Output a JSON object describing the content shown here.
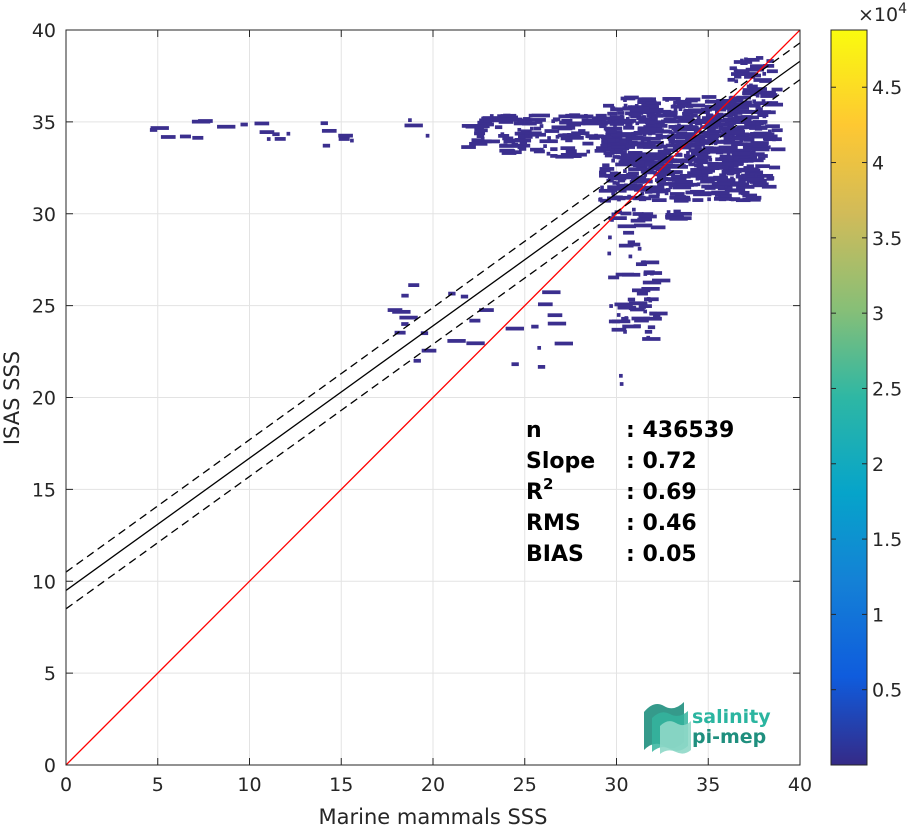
{
  "chart_data": {
    "type": "heatmap",
    "xlabel": "Marine mammals SSS",
    "ylabel": "ISAS SSS",
    "xlim": [
      0,
      40
    ],
    "ylim": [
      0,
      40
    ],
    "x_ticks": [
      0,
      5,
      10,
      15,
      20,
      25,
      30,
      35,
      40
    ],
    "y_ticks": [
      0,
      5,
      10,
      15,
      20,
      25,
      30,
      35,
      40
    ],
    "grid": true,
    "colorbar": {
      "colormap": "parula",
      "range": [
        0,
        48800
      ],
      "ticks": [
        5000,
        10000,
        15000,
        20000,
        25000,
        30000,
        35000,
        40000,
        45000
      ],
      "tick_labels": [
        "0.5",
        "1",
        "1.5",
        "2",
        "2.5",
        "3",
        "3.5",
        "4",
        "4.5"
      ],
      "multiplier_base": "×10",
      "multiplier_exp": "4"
    },
    "density_clusters": [
      {
        "x": [
          29,
          37.5
        ],
        "y": [
          30.8,
          36.2
        ],
        "count": 520
      },
      {
        "x": [
          30,
          38.5
        ],
        "y": [
          31.5,
          36.5
        ],
        "count": 260
      },
      {
        "x": [
          21.5,
          30
        ],
        "y": [
          33.2,
          35.5
        ],
        "count": 160
      },
      {
        "x": [
          36,
          38.5
        ],
        "y": [
          36.5,
          38.6
        ],
        "count": 40
      },
      {
        "x": [
          29.5,
          32
        ],
        "y": [
          23,
          30.5
        ],
        "count": 70
      },
      {
        "x": [
          32.5,
          33.5
        ],
        "y": [
          29.8,
          30.3
        ],
        "count": 12
      },
      {
        "x": [
          4,
          20.5
        ],
        "y": [
          33.8,
          35.2
        ],
        "count": 24
      },
      {
        "x": [
          17.5,
          27
        ],
        "y": [
          21.5,
          26.5
        ],
        "count": 26
      },
      {
        "x": [
          29.2,
          30.5
        ],
        "y": [
          20.6,
          21.6
        ],
        "count": 2
      }
    ],
    "lines": [
      {
        "name": "1:1",
        "color": "#ff0000",
        "dash": false,
        "slope": 1,
        "intercept": 0
      },
      {
        "name": "fit",
        "color": "#000000",
        "dash": false,
        "slope": 0.72,
        "intercept": 9.5
      },
      {
        "name": "fit-upper",
        "color": "#000000",
        "dash": true,
        "slope": 0.72,
        "intercept": 10.5
      },
      {
        "name": "fit-lower",
        "color": "#000000",
        "dash": true,
        "slope": 0.72,
        "intercept": 8.5
      }
    ],
    "stats": [
      {
        "label": "n",
        "sup": "",
        "value": ": 436539"
      },
      {
        "label": "Slope",
        "sup": "",
        "value": ": 0.72"
      },
      {
        "label": "R",
        "sup": "2",
        "value": ": 0.69"
      },
      {
        "label": "RMS",
        "sup": "",
        "value": ": 0.46"
      },
      {
        "label": "BIAS",
        "sup": "",
        "value": ": 0.05"
      }
    ]
  },
  "logo": {
    "line1": "salinity",
    "line2": "pi-mep",
    "color": "#2bb5a0"
  }
}
